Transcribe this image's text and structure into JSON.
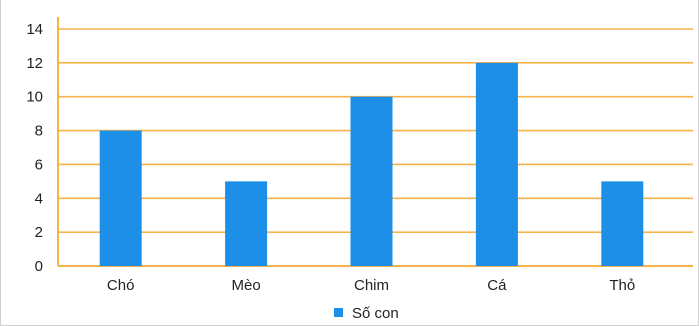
{
  "chart_data": {
    "type": "bar",
    "categories": [
      "Chó",
      "Mèo",
      "Chim",
      "Cá",
      "Thỏ"
    ],
    "series": [
      {
        "name": "Số con",
        "values": [
          8,
          5,
          10,
          12,
          5
        ]
      }
    ],
    "title": "",
    "xlabel": "",
    "ylabel": "",
    "ylim": [
      0,
      14
    ],
    "yticks": [
      0,
      2,
      4,
      6,
      8,
      10,
      12,
      14
    ],
    "grid": true,
    "legend_position": "bottom",
    "colors": {
      "bar": "#1e8fe6",
      "grid": "#f5b34a",
      "axis": "#f5b34a"
    }
  }
}
